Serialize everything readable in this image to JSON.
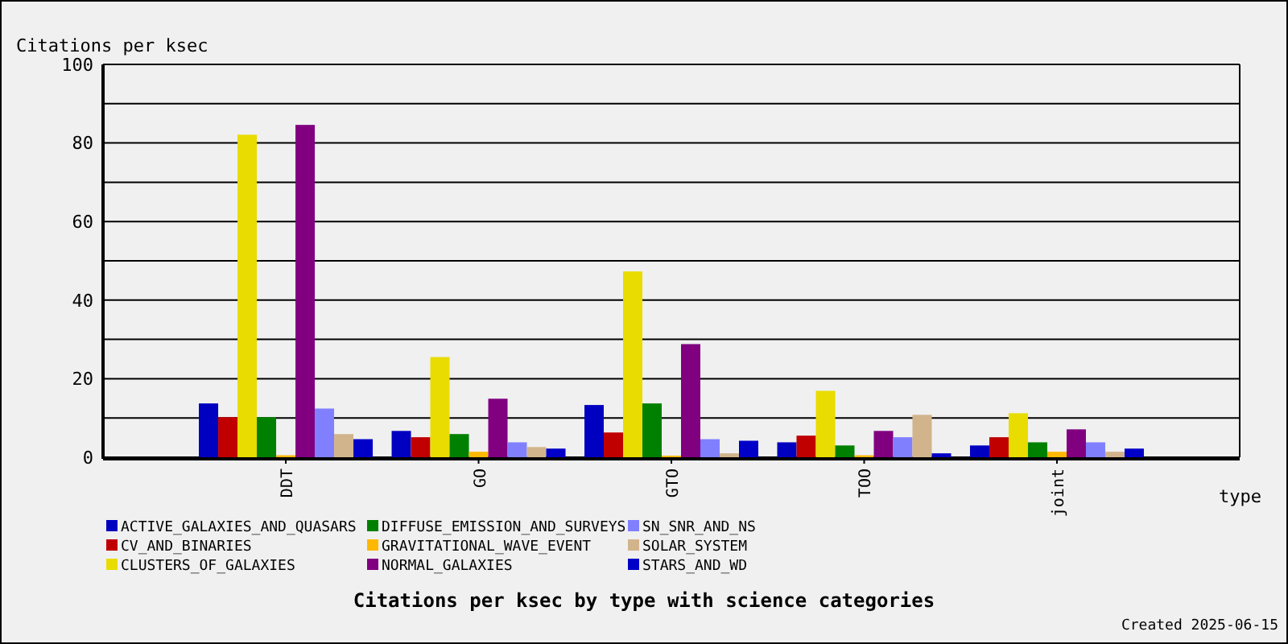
{
  "chart_data": {
    "type": "bar",
    "title": "Citations per ksec by type with science categories",
    "xlabel": "type",
    "ylabel": "Citations per ksec",
    "annotations": [
      "Created 2025-06-15"
    ],
    "categories": [
      "DDT",
      "GO",
      "GTO",
      "TOO",
      "joint"
    ],
    "series": [
      {
        "name": "ACTIVE_GALAXIES_AND_QUASARS",
        "color": "#0000c0",
        "values": [
          13.7,
          6.7,
          13.3,
          3.8,
          3.0
        ]
      },
      {
        "name": "CV_AND_BINARIES",
        "color": "#c00000",
        "values": [
          10.2,
          5.1,
          6.3,
          5.5,
          5.1
        ]
      },
      {
        "name": "CLUSTERS_OF_GALAXIES",
        "color": "#e8dc00",
        "values": [
          82.1,
          25.5,
          47.3,
          16.9,
          11.2
        ]
      },
      {
        "name": "DIFFUSE_EMISSION_AND_SURVEYS",
        "color": "#008000",
        "values": [
          10.2,
          5.9,
          13.7,
          3.0,
          3.8
        ]
      },
      {
        "name": "GRAVITATIONAL_WAVE_EVENT",
        "color": "#ffb800",
        "values": [
          0.5,
          1.4,
          0.4,
          0.5,
          1.4
        ]
      },
      {
        "name": "NORMAL_GALAXIES",
        "color": "#800080",
        "values": [
          84.6,
          14.9,
          28.8,
          6.7,
          7.1
        ]
      },
      {
        "name": "SN_SNR_AND_NS",
        "color": "#8080ff",
        "values": [
          12.4,
          3.8,
          4.6,
          5.1,
          3.8
        ]
      },
      {
        "name": "SOLAR_SYSTEM",
        "color": "#d2b48c",
        "values": [
          5.9,
          2.6,
          1.0,
          10.8,
          1.4
        ]
      },
      {
        "name": "STARS_AND_WD",
        "color": "#0000c8",
        "values": [
          4.6,
          2.2,
          4.2,
          1.0,
          2.2
        ]
      }
    ],
    "ylim": [
      0,
      100
    ],
    "yticks": [
      0,
      {
        "value": 10,
        "label": null
      },
      20,
      {
        "value": 30,
        "label": null
      },
      40,
      {
        "value": 50,
        "label": null
      },
      60,
      {
        "value": 70,
        "label": null
      },
      80,
      {
        "value": 90,
        "label": null
      },
      100
    ],
    "grid": "y",
    "legend": "bottom"
  }
}
